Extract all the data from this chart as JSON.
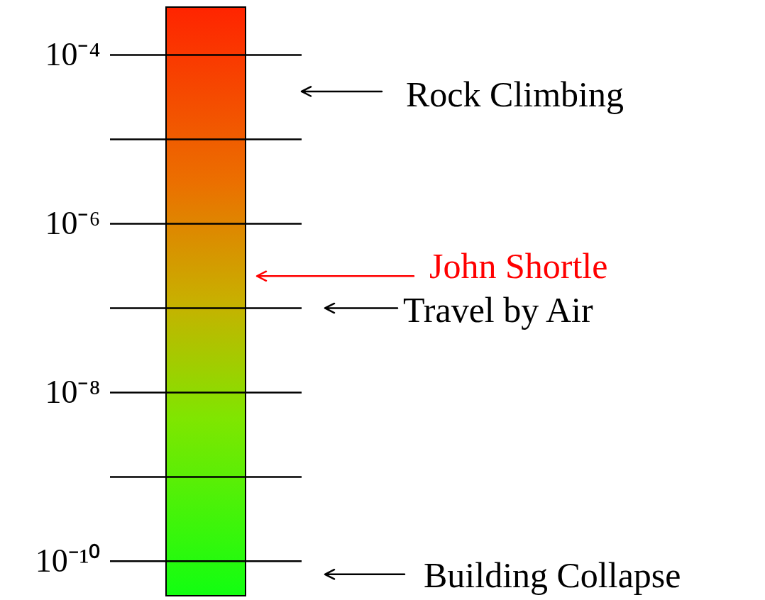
{
  "chart_data": {
    "type": "bar",
    "log": true,
    "grid": "y",
    "categories": [
      null
    ],
    "base": [
      3.9e-11
    ],
    "values": [
      0.000369961
    ],
    "ylim": [
      3.9e-11,
      0.00037
    ],
    "yticks": [
      {
        "value": 0.0001,
        "label": "10⁻⁴"
      },
      {
        "value": 1e-05,
        "label": null
      },
      {
        "value": 1e-06,
        "label": "10⁻⁶"
      },
      {
        "value": 1e-07,
        "label": null
      },
      {
        "value": 1e-08,
        "label": "10⁻⁸"
      },
      {
        "value": 1e-09,
        "label": null
      },
      {
        "value": 1e-10,
        "label": "10⁻¹⁰"
      }
    ],
    "ref_lines": [
      {
        "axis": "y",
        "value": 3.7e-05,
        "label": "Rock Climbing",
        "color": "#000000"
      },
      {
        "axis": "y",
        "value": 2.4e-07,
        "label": "John Shortle",
        "color": "#ff0000"
      },
      {
        "axis": "y",
        "value": 1e-07,
        "label": "Travel by Air",
        "color": "#000000"
      },
      {
        "axis": "y",
        "value": 7e-11,
        "label": "Building Collapse",
        "color": "#000000"
      }
    ]
  }
}
